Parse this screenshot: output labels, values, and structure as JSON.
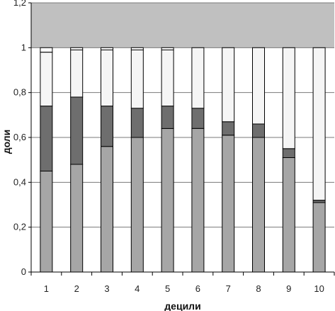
{
  "chart_data": {
    "type": "bar",
    "stacked": true,
    "categories": [
      "1",
      "2",
      "3",
      "4",
      "5",
      "6",
      "7",
      "8",
      "9",
      "10"
    ],
    "series": [
      {
        "values": [
          0.45,
          0.48,
          0.56,
          0.6,
          0.64,
          0.64,
          0.61,
          0.6,
          0.51,
          0.31
        ],
        "color": "#a6a6a6"
      },
      {
        "values": [
          0.29,
          0.3,
          0.18,
          0.13,
          0.1,
          0.09,
          0.06,
          0.06,
          0.04,
          0.01
        ],
        "color": "#6e6e6e"
      },
      {
        "values": [
          0.24,
          0.21,
          0.25,
          0.26,
          0.25,
          0.27,
          0.33,
          0.34,
          0.45,
          0.68
        ],
        "color": "#f5f5f5"
      },
      {
        "values": [
          0.02,
          0.01,
          0.01,
          0.01,
          0.01,
          0.0,
          0.0,
          0.0,
          0.0,
          0.0
        ],
        "color": "#ffffff"
      }
    ],
    "xlabel": "децили",
    "ylabel": "доли",
    "ylim": [
      0,
      1.2
    ],
    "yticks": [
      0,
      0.2,
      0.4,
      0.6,
      0.8,
      1,
      1.2
    ],
    "ytick_labels": [
      "0",
      "0,2",
      "0,4",
      "0,6",
      "0,8",
      "1",
      "1,2"
    ],
    "plot_background": "#c0c0c0",
    "grid": true,
    "legend": "none"
  }
}
